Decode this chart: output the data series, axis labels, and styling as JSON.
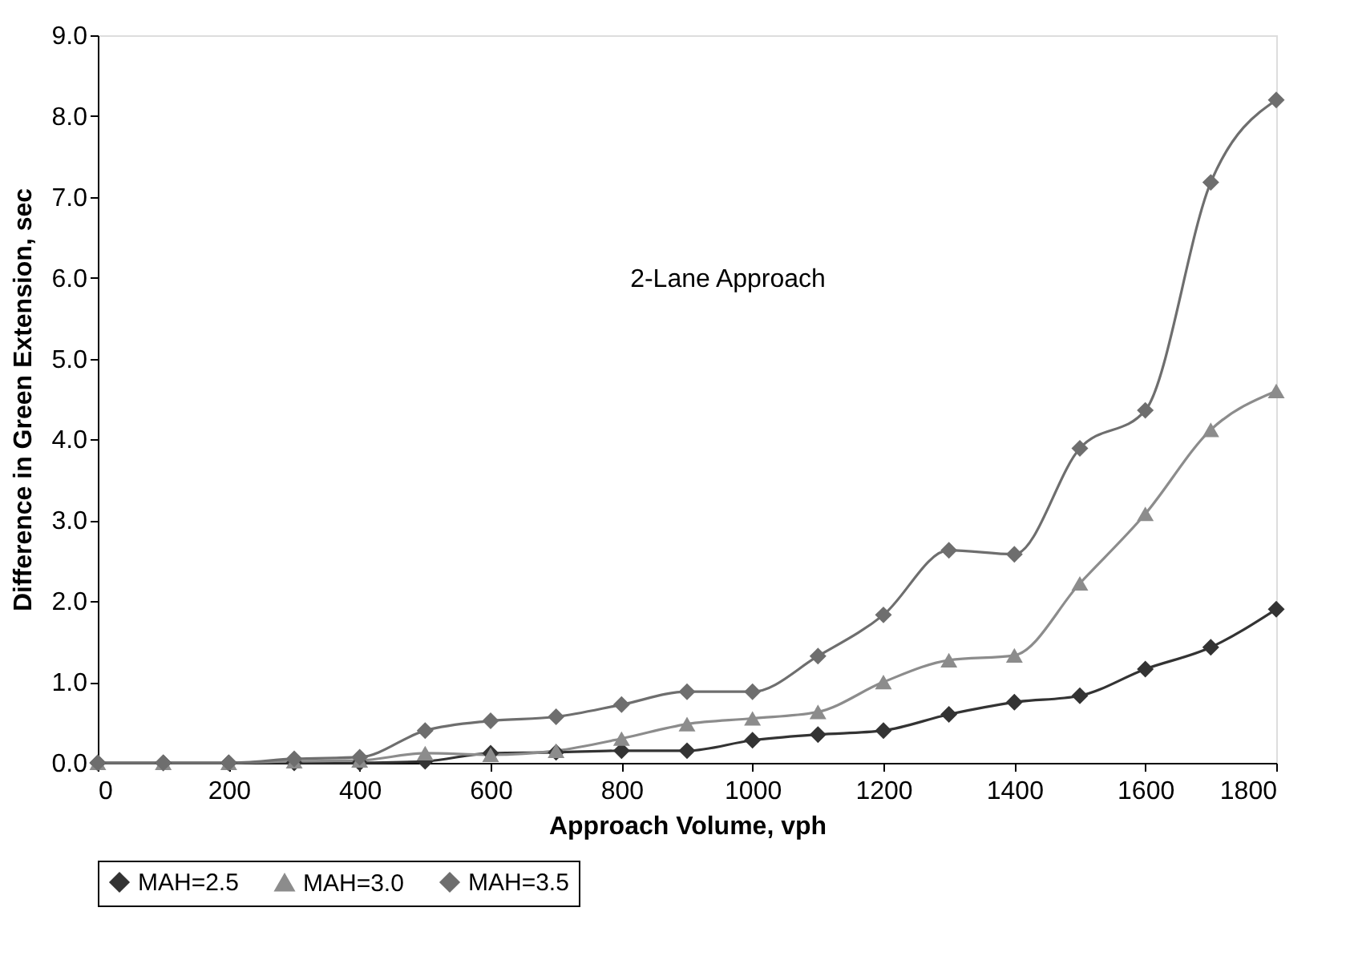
{
  "chart_data": {
    "type": "line",
    "xlabel": "Approach Volume, vph",
    "ylabel": "Difference in Green Extension, sec",
    "annotations": [
      "2-Lane Approach"
    ],
    "x": [
      0,
      100,
      200,
      300,
      400,
      500,
      600,
      700,
      800,
      900,
      1000,
      1100,
      1200,
      1300,
      1400,
      1500,
      1600,
      1700,
      1800
    ],
    "series": [
      {
        "name": "MAH=2.5",
        "color": "#333333",
        "marker": "diamond",
        "values": [
          0,
          0,
          0,
          0,
          0,
          0.02,
          0.12,
          0.13,
          0.15,
          0.15,
          0.28,
          0.35,
          0.4,
          0.6,
          0.75,
          0.83,
          1.16,
          1.43,
          1.9
        ]
      },
      {
        "name": "MAH=3.0",
        "color": "#8c8c8c",
        "marker": "triangle",
        "values": [
          0,
          0,
          0,
          0.02,
          0.03,
          0.12,
          0.1,
          0.15,
          0.3,
          0.48,
          0.55,
          0.63,
          1.0,
          1.27,
          1.33,
          2.22,
          3.08,
          4.12,
          4.6
        ]
      },
      {
        "name": "MAH=3.5",
        "color": "#6e6e6e",
        "marker": "diamond",
        "values": [
          0,
          0,
          0,
          0.05,
          0.07,
          0.4,
          0.52,
          0.57,
          0.72,
          0.88,
          0.88,
          1.32,
          1.83,
          2.63,
          2.58,
          3.89,
          4.36,
          7.18,
          8.2
        ]
      }
    ],
    "xlim": [
      0,
      1800
    ],
    "xticks": [
      0,
      200,
      400,
      600,
      800,
      1000,
      1200,
      1400,
      1600,
      1800
    ],
    "ylim": [
      0,
      9
    ],
    "yticks": [
      {
        "value": 0,
        "label": "0.0"
      },
      {
        "value": 1,
        "label": "1.0"
      },
      {
        "value": 2,
        "label": "2.0"
      },
      {
        "value": 3,
        "label": "3.0"
      },
      {
        "value": 4,
        "label": "4.0"
      },
      {
        "value": 5,
        "label": "5.0"
      },
      {
        "value": 6,
        "label": "6.0"
      },
      {
        "value": 7,
        "label": "7.0"
      },
      {
        "value": 8,
        "label": "8.0"
      },
      {
        "value": 9,
        "label": "9.0"
      }
    ],
    "grid": false,
    "legend": "bottom",
    "line_style": "solid"
  }
}
